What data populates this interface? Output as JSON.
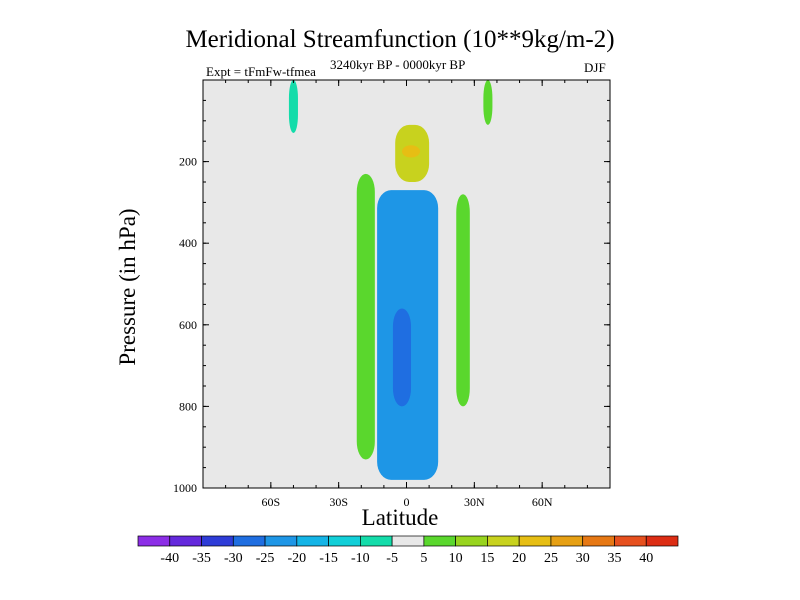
{
  "chart_data": {
    "type": "heatmap",
    "title": "Meridional Streamfunction (10**9kg/m-2)",
    "subtitle_left": "Expt = tFmFw-tfmea",
    "subtitle_center": "3240kyr BP - 0000kyr BP",
    "subtitle_right": "DJF",
    "xlabel": "Latitude",
    "ylabel": "Pressure (in hPa)",
    "xlim": [
      -90,
      90
    ],
    "ylim": [
      1000,
      0
    ],
    "x_ticks": [
      {
        "value": -60,
        "label": "60S"
      },
      {
        "value": -30,
        "label": "30S"
      },
      {
        "value": 0,
        "label": "0"
      },
      {
        "value": 30,
        "label": "30N"
      },
      {
        "value": 60,
        "label": "60N"
      }
    ],
    "y_ticks": [
      {
        "value": 200,
        "label": "200"
      },
      {
        "value": 400,
        "label": "400"
      },
      {
        "value": 600,
        "label": "600"
      },
      {
        "value": 800,
        "label": "800"
      },
      {
        "value": 1000,
        "label": "1000"
      }
    ],
    "colorbar": {
      "levels": [
        -40,
        -35,
        -30,
        -25,
        -20,
        -15,
        -10,
        -5,
        5,
        10,
        15,
        20,
        25,
        30,
        35,
        40
      ],
      "colors": [
        "#8c2ee6",
        "#6429dc",
        "#2e3cd7",
        "#1f6ee1",
        "#1e96e6",
        "#14b4e6",
        "#12cfd8",
        "#14dcaa",
        "#e8e8e8",
        "#5ad72d",
        "#98d41e",
        "#c8d21e",
        "#e6be14",
        "#e6a014",
        "#e67814",
        "#e6501e",
        "#dc2d14"
      ]
    },
    "field_regions": [
      {
        "name": "positive cell SH tropics",
        "lat": [
          -22,
          -14
        ],
        "p": [
          230,
          930
        ],
        "level": 5
      },
      {
        "name": "negative cell core",
        "lat": [
          -13,
          14
        ],
        "p": [
          270,
          980
        ],
        "level": -20
      },
      {
        "name": "negative cell minimum",
        "lat": [
          -6,
          2
        ],
        "p": [
          560,
          800
        ],
        "level": -25
      },
      {
        "name": "upper positive cell",
        "lat": [
          -5,
          10
        ],
        "p": [
          110,
          250
        ],
        "level": 15
      },
      {
        "name": "upper positive cell max",
        "lat": [
          -2,
          6
        ],
        "p": [
          160,
          190
        ],
        "level": 20
      },
      {
        "name": "positive cell NH subtropics",
        "lat": [
          22,
          28
        ],
        "p": [
          280,
          800
        ],
        "level": 5
      },
      {
        "name": "stratosphere SH",
        "lat": [
          -52,
          -48
        ],
        "p": [
          0,
          130
        ],
        "level": -5
      },
      {
        "name": "stratosphere NH",
        "lat": [
          34,
          38
        ],
        "p": [
          0,
          110
        ],
        "level": 5
      }
    ]
  }
}
